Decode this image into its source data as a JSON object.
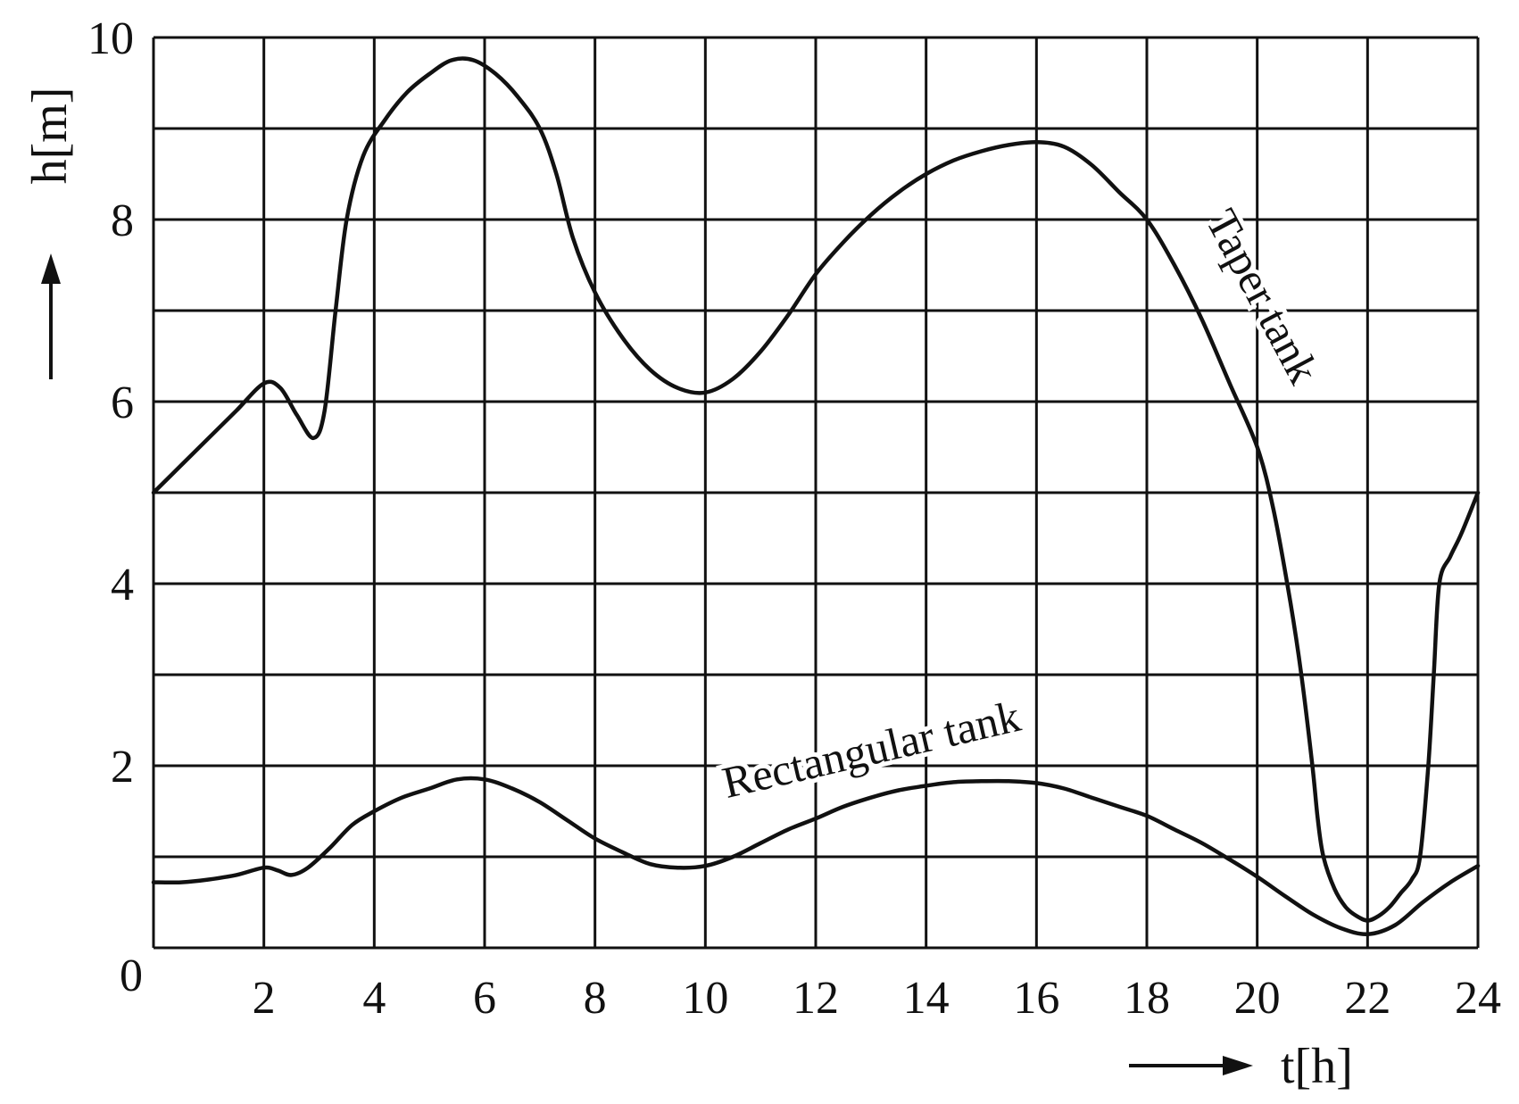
{
  "chart_data": {
    "type": "line",
    "xlabel": "t[h]",
    "ylabel": "h[m]",
    "xlim": [
      0,
      24
    ],
    "ylim": [
      0,
      10
    ],
    "origin_label": "0",
    "x_ticks": [
      "2",
      "4",
      "6",
      "8",
      "10",
      "12",
      "14",
      "16",
      "18",
      "20",
      "22",
      "24"
    ],
    "y_ticks": [
      "2",
      "4",
      "6",
      "8",
      "10"
    ],
    "grid": true,
    "series": [
      {
        "name": "Taper tank",
        "x": [
          0,
          0.5,
          1,
          1.5,
          2,
          2.3,
          2.6,
          2.9,
          3.1,
          3.3,
          3.5,
          3.8,
          4.2,
          4.6,
          5,
          5.4,
          5.8,
          6.2,
          6.6,
          7,
          7.3,
          7.6,
          8,
          8.5,
          9,
          9.5,
          10,
          10.5,
          11,
          11.5,
          12,
          12.5,
          13,
          13.5,
          14,
          14.5,
          15,
          15.5,
          16,
          16.5,
          17,
          17.5,
          18,
          18.5,
          19,
          19.5,
          20,
          20.3,
          20.6,
          20.8,
          21,
          21.1,
          21.2,
          21.4,
          21.6,
          21.8,
          22,
          22.2,
          22.4,
          22.6,
          22.8,
          22.95,
          23.1,
          23.2,
          23.3,
          23.5,
          23.7,
          24
        ],
        "y": [
          5.0,
          5.3,
          5.6,
          5.9,
          6.2,
          6.15,
          5.85,
          5.6,
          5.9,
          7.0,
          8.0,
          8.7,
          9.1,
          9.4,
          9.6,
          9.75,
          9.75,
          9.6,
          9.35,
          9.0,
          8.5,
          7.8,
          7.2,
          6.7,
          6.35,
          6.15,
          6.1,
          6.25,
          6.55,
          6.95,
          7.4,
          7.75,
          8.05,
          8.3,
          8.5,
          8.65,
          8.75,
          8.82,
          8.85,
          8.8,
          8.6,
          8.3,
          8.0,
          7.5,
          6.9,
          6.2,
          5.5,
          4.8,
          3.8,
          3.0,
          2.0,
          1.4,
          1.0,
          0.65,
          0.45,
          0.35,
          0.3,
          0.35,
          0.45,
          0.6,
          0.75,
          1.0,
          2.0,
          3.0,
          4.0,
          4.3,
          4.55,
          5.0
        ]
      },
      {
        "name": "Rectangular tank",
        "x": [
          0,
          0.5,
          1,
          1.5,
          2,
          2.25,
          2.5,
          2.8,
          3.2,
          3.6,
          4,
          4.5,
          5,
          5.5,
          6,
          6.5,
          7,
          7.5,
          8,
          8.5,
          9,
          9.5,
          10,
          10.5,
          11,
          11.5,
          12,
          12.5,
          13,
          13.5,
          14,
          14.5,
          15,
          15.5,
          16,
          16.5,
          17,
          17.5,
          18,
          18.5,
          19,
          19.5,
          20,
          20.5,
          21,
          21.5,
          22,
          22.5,
          23,
          23.5,
          24
        ],
        "y": [
          0.72,
          0.72,
          0.75,
          0.8,
          0.88,
          0.85,
          0.8,
          0.88,
          1.1,
          1.35,
          1.5,
          1.65,
          1.75,
          1.85,
          1.85,
          1.75,
          1.6,
          1.4,
          1.2,
          1.05,
          0.92,
          0.88,
          0.9,
          1.0,
          1.15,
          1.3,
          1.42,
          1.55,
          1.65,
          1.73,
          1.78,
          1.82,
          1.83,
          1.83,
          1.81,
          1.75,
          1.65,
          1.55,
          1.45,
          1.3,
          1.15,
          0.97,
          0.78,
          0.57,
          0.37,
          0.22,
          0.15,
          0.25,
          0.5,
          0.72,
          0.9
        ]
      }
    ]
  }
}
